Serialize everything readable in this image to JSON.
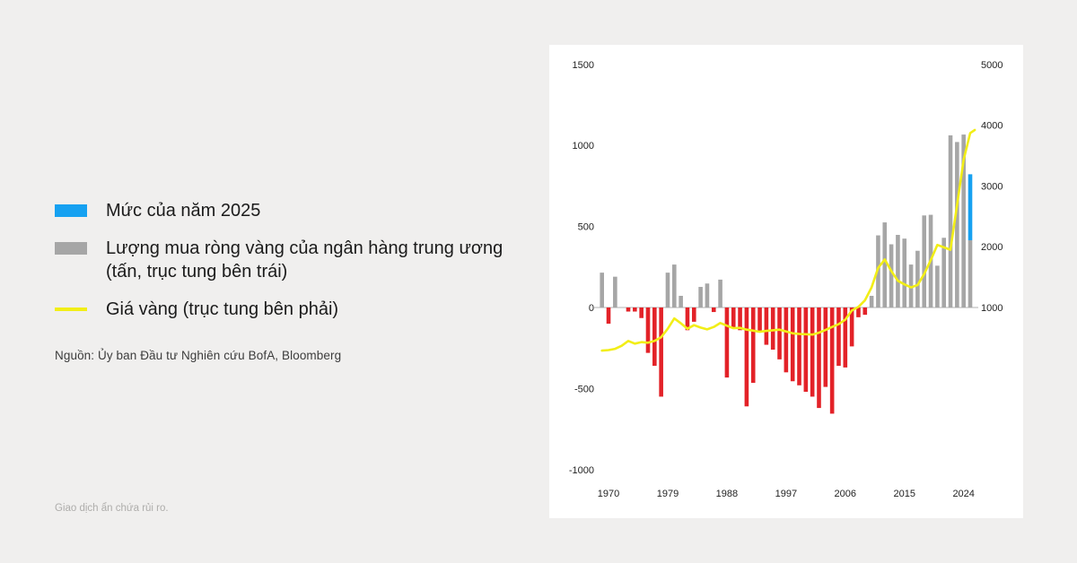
{
  "page": {
    "footer_disclaimer": "Giao dịch ẩn chứa rủi ro.",
    "background_color": "#f0efee",
    "panel_color": "#ffffff"
  },
  "legend": {
    "items": [
      {
        "swatch": "blue-rect",
        "label_lines": [
          "Mức của năm 2025"
        ]
      },
      {
        "swatch": "gray-rect",
        "label_lines": [
          "Lượng mua ròng vàng của ngân hàng trung ương",
          "(tấn, trục tung bên trái)"
        ]
      },
      {
        "swatch": "yellow-line",
        "label_lines": [
          "Giá vàng (trục tung bên phải)"
        ]
      }
    ],
    "source": "Nguồn: Ủy ban Đầu tư Nghiên cứu BofA, Bloomberg"
  },
  "chart_data": {
    "type": "bar+line combo",
    "title": "",
    "grid": "off",
    "colors": {
      "gray": "#a6a6a6",
      "red": "#e32228",
      "blue": "#16a1f1",
      "yellow": "#f2ee17",
      "zero_line": "#cccccc",
      "axis_text": "#1f1f1f"
    },
    "axes": {
      "left_ticks": [
        1500,
        1000,
        500,
        0,
        -500,
        -1000
      ],
      "left_ylim": [
        -1000,
        1500
      ],
      "right_ticks": [
        5000,
        4000,
        3000,
        2000,
        1000
      ],
      "right_ylim": [
        1000,
        5000
      ],
      "x_ticks": [
        1970,
        1979,
        1988,
        1997,
        2006,
        2015,
        2024
      ],
      "x_range": [
        1969,
        2025
      ]
    },
    "bars": {
      "name": "Lượng mua ròng vàng của ngân hàng trung ương (tấn, trục tung bên trái)",
      "years": [
        1969,
        1970,
        1971,
        1972,
        1973,
        1974,
        1975,
        1976,
        1977,
        1978,
        1979,
        1980,
        1981,
        1982,
        1983,
        1984,
        1985,
        1986,
        1987,
        1988,
        1989,
        1990,
        1991,
        1992,
        1993,
        1994,
        1995,
        1996,
        1997,
        1998,
        1999,
        2000,
        2001,
        2002,
        2003,
        2004,
        2005,
        2006,
        2007,
        2008,
        2009,
        2010,
        2011,
        2012,
        2013,
        2014,
        2015,
        2016,
        2017,
        2018,
        2019,
        2020,
        2021,
        2022,
        2023,
        2024
      ],
      "values": [
        215,
        -100,
        190,
        0,
        -25,
        -25,
        -65,
        -280,
        -360,
        -550,
        215,
        265,
        72,
        -140,
        -88,
        127,
        148,
        -28,
        172,
        -432,
        -130,
        -140,
        -610,
        -465,
        -150,
        -230,
        -260,
        -320,
        -400,
        -455,
        -480,
        -520,
        -550,
        -620,
        -490,
        -655,
        -360,
        -370,
        -240,
        -60,
        -45,
        72,
        445,
        525,
        390,
        448,
        425,
        265,
        350,
        568,
        572,
        258,
        430,
        1062,
        1021,
        1067
      ]
    },
    "bar_2025": {
      "year": 2025,
      "gray_segment_top": 415,
      "blue_segment_top": 822,
      "note": "Mức của năm 2025 (blue segment)"
    },
    "gold_price_line": {
      "name": "Giá vàng (trục tung bên phải)",
      "points": [
        [
          1969,
          290
        ],
        [
          1970,
          300
        ],
        [
          1971,
          320
        ],
        [
          1972,
          370
        ],
        [
          1973,
          450
        ],
        [
          1974,
          405
        ],
        [
          1975,
          430
        ],
        [
          1976,
          420
        ],
        [
          1977,
          450
        ],
        [
          1978,
          510
        ],
        [
          1979,
          650
        ],
        [
          1980,
          820
        ],
        [
          1981,
          740
        ],
        [
          1982,
          650
        ],
        [
          1983,
          710
        ],
        [
          1984,
          670
        ],
        [
          1985,
          640
        ],
        [
          1986,
          680
        ],
        [
          1987,
          745
        ],
        [
          1988,
          700
        ],
        [
          1989,
          660
        ],
        [
          1990,
          665
        ],
        [
          1991,
          635
        ],
        [
          1992,
          620
        ],
        [
          1993,
          600
        ],
        [
          1994,
          615
        ],
        [
          1995,
          625
        ],
        [
          1996,
          635
        ],
        [
          1997,
          605
        ],
        [
          1998,
          575
        ],
        [
          1999,
          565
        ],
        [
          2000,
          560
        ],
        [
          2001,
          555
        ],
        [
          2002,
          585
        ],
        [
          2003,
          630
        ],
        [
          2004,
          680
        ],
        [
          2005,
          725
        ],
        [
          2006,
          800
        ],
        [
          2007,
          950
        ],
        [
          2008,
          1010
        ],
        [
          2009,
          1120
        ],
        [
          2010,
          1330
        ],
        [
          2011,
          1650
        ],
        [
          2012,
          1790
        ],
        [
          2013,
          1600
        ],
        [
          2014,
          1440
        ],
        [
          2015,
          1380
        ],
        [
          2016,
          1330
        ],
        [
          2017,
          1370
        ],
        [
          2018,
          1550
        ],
        [
          2019,
          1780
        ],
        [
          2020,
          2030
        ],
        [
          2021,
          1990
        ],
        [
          2022,
          1950
        ],
        [
          2023,
          2690
        ],
        [
          2024,
          3430
        ],
        [
          2025,
          3870
        ],
        [
          2025.7,
          3920
        ]
      ]
    }
  }
}
